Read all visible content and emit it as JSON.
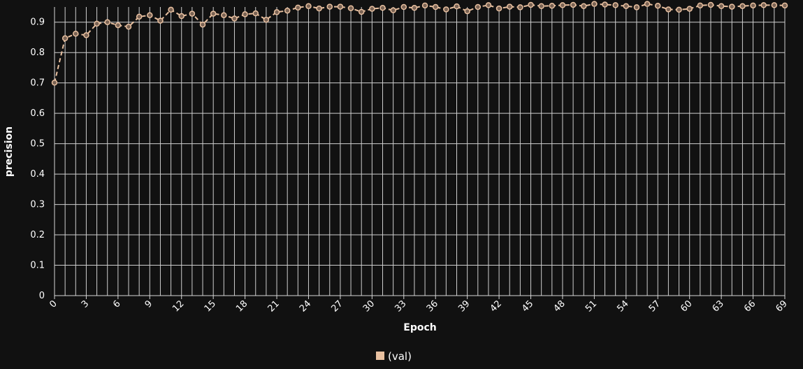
{
  "chart_data": {
    "type": "line",
    "xlabel": "Epoch",
    "ylabel": "precision",
    "ylim": [
      0,
      0.95
    ],
    "xlim": [
      0,
      69
    ],
    "y_ticks": [
      0,
      0.1,
      0.2,
      0.3,
      0.4,
      0.5,
      0.6,
      0.7,
      0.8,
      0.9
    ],
    "y_tick_labels": [
      "0",
      "0.1",
      "0.2",
      "0.3",
      "0.4",
      "0.5",
      "0.6",
      "0.7",
      "0.8",
      "0.9"
    ],
    "x_ticks": [
      0,
      3,
      6,
      9,
      12,
      15,
      18,
      21,
      24,
      27,
      30,
      33,
      36,
      39,
      42,
      45,
      48,
      51,
      54,
      57,
      60,
      63,
      66,
      69
    ],
    "x_tick_labels": [
      "0",
      "3",
      "6",
      "9",
      "12",
      "15",
      "18",
      "21",
      "24",
      "27",
      "30",
      "33",
      "36",
      "39",
      "42",
      "45",
      "48",
      "51",
      "54",
      "57",
      "60",
      "63",
      "66",
      "69"
    ],
    "grid": true,
    "legend_position": "bottom-center",
    "series": [
      {
        "name": "(val)",
        "color": "#e8c0a0",
        "line_style": "dashed",
        "marker": "circle",
        "x": [
          0,
          1,
          2,
          3,
          4,
          5,
          6,
          7,
          8,
          9,
          10,
          11,
          12,
          13,
          14,
          15,
          16,
          17,
          18,
          19,
          20,
          21,
          22,
          23,
          24,
          25,
          26,
          27,
          28,
          29,
          30,
          31,
          32,
          33,
          34,
          35,
          36,
          37,
          38,
          39,
          40,
          41,
          42,
          43,
          44,
          45,
          46,
          47,
          48,
          49,
          50,
          51,
          52,
          53,
          54,
          55,
          56,
          57,
          58,
          59,
          60,
          61,
          62,
          63,
          64,
          65,
          66,
          67,
          68,
          69
        ],
        "values": [
          0.701,
          0.847,
          0.862,
          0.857,
          0.895,
          0.9,
          0.89,
          0.885,
          0.918,
          0.923,
          0.905,
          0.941,
          0.92,
          0.928,
          0.892,
          0.928,
          0.923,
          0.912,
          0.926,
          0.929,
          0.908,
          0.933,
          0.938,
          0.948,
          0.953,
          0.945,
          0.951,
          0.951,
          0.946,
          0.934,
          0.944,
          0.947,
          0.939,
          0.95,
          0.947,
          0.955,
          0.95,
          0.942,
          0.952,
          0.936,
          0.95,
          0.956,
          0.945,
          0.951,
          0.949,
          0.957,
          0.953,
          0.954,
          0.956,
          0.957,
          0.953,
          0.96,
          0.958,
          0.956,
          0.953,
          0.949,
          0.96,
          0.954,
          0.942,
          0.941,
          0.944,
          0.955,
          0.957,
          0.953,
          0.951,
          0.953,
          0.955,
          0.956,
          0.956,
          0.955
        ]
      }
    ]
  }
}
